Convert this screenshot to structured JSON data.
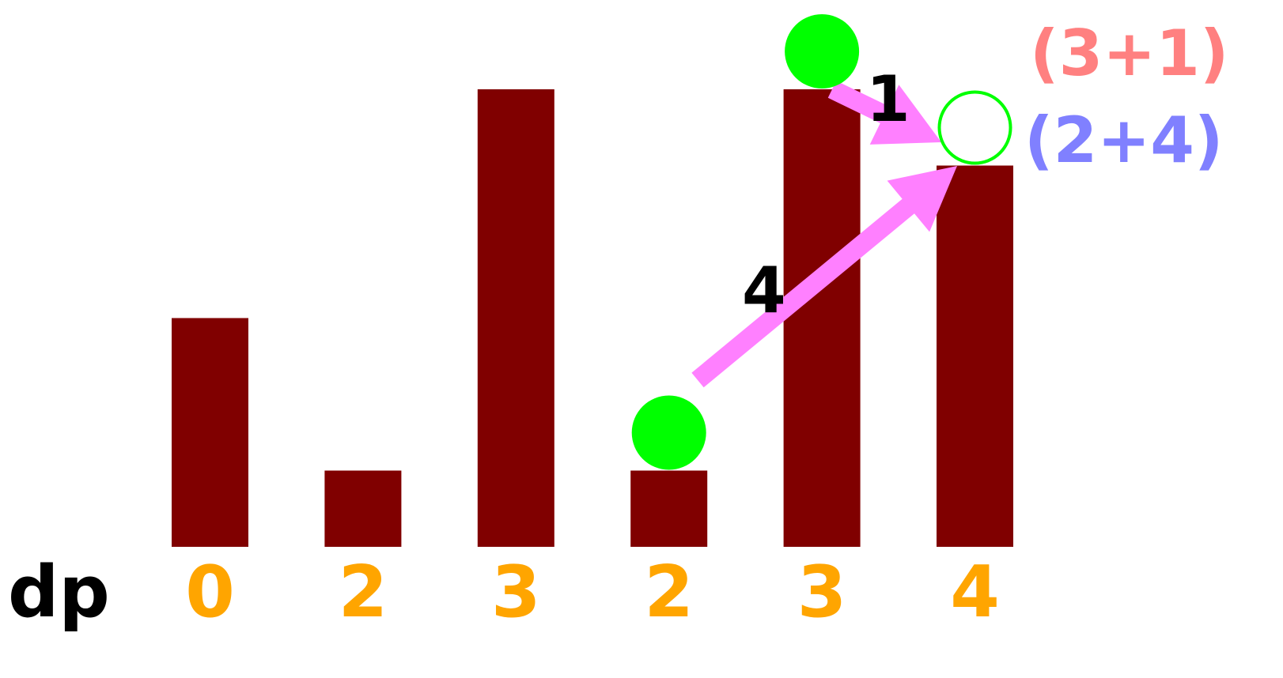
{
  "bars": {
    "heights": [
      3,
      1,
      6,
      1,
      6,
      5
    ],
    "color": "#800000"
  },
  "dp": {
    "label": "dp",
    "values": [
      "0",
      "2",
      "3",
      "2",
      "3",
      "4"
    ],
    "color": "#ffa500"
  },
  "markers": {
    "filled_on_bars": [
      3,
      4
    ],
    "hollow_on_bar": 5,
    "color": "#00ff00"
  },
  "arrows": {
    "color": "#ff80ff",
    "items": [
      {
        "from_bar": 4,
        "to_bar": 5,
        "label": "1"
      },
      {
        "from_bar": 3,
        "to_bar": 5,
        "label": "4"
      }
    ]
  },
  "candidates": [
    {
      "text": "(3+1)",
      "color": "#ff8080"
    },
    {
      "text": "(2+4)",
      "color": "#8080ff"
    }
  ]
}
